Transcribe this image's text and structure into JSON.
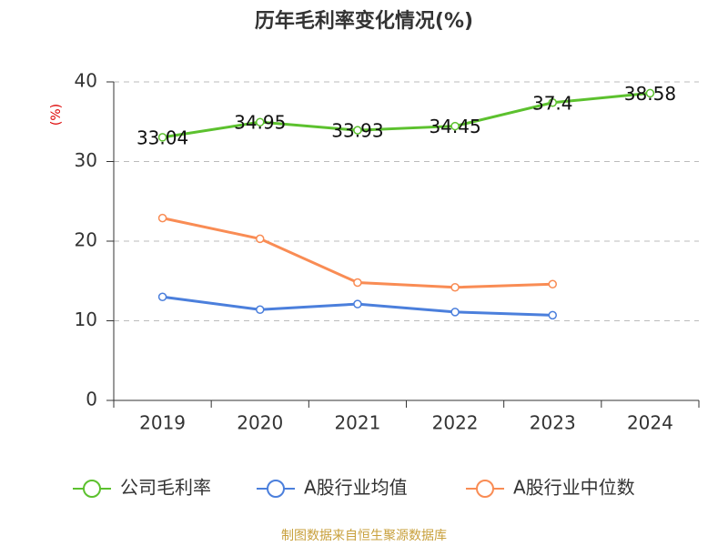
{
  "chart_data": {
    "type": "line",
    "title": "历年毛利率变化情况(%)",
    "y_label": "(%)",
    "source": "制图数据来自恒生聚源数据库",
    "categories": [
      "2019",
      "2020",
      "2021",
      "2022",
      "2023",
      "2024"
    ],
    "series": [
      {
        "name": "公司毛利率",
        "color": "#5cc12e",
        "values": [
          33.04,
          34.95,
          33.93,
          34.45,
          37.4,
          38.58
        ],
        "data_labels": true
      },
      {
        "name": "A股行业均值",
        "color": "#4b7fdc",
        "values": [
          13.0,
          11.4,
          12.1,
          11.1,
          10.7,
          null
        ],
        "data_labels": false
      },
      {
        "name": "A股行业中位数",
        "color": "#f98c54",
        "values": [
          22.9,
          20.3,
          14.8,
          14.2,
          14.6,
          null
        ],
        "data_labels": false
      }
    ],
    "ylim": [
      0,
      40
    ],
    "yticks": [
      0,
      10,
      20,
      30,
      40
    ],
    "grid": true,
    "legend": "bottom"
  }
}
